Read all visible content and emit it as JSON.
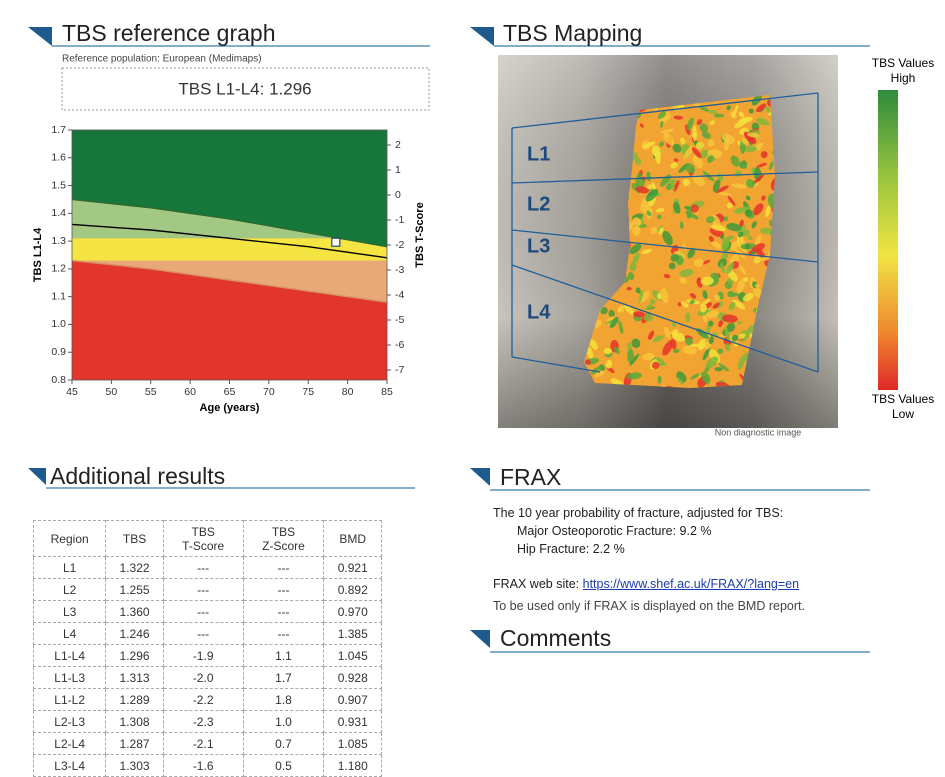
{
  "header_left": {
    "title": "TBS reference graph",
    "subtitle": "Reference population: European (Medimaps)",
    "result": "TBS  L1-L4: 1.296"
  },
  "chart_data": {
    "type": "line",
    "x_label": "Age (years)",
    "y_label": "TBS L1-L4",
    "y2_label": "TBS T-Score",
    "xlim": [
      45,
      85
    ],
    "xticks": [
      45,
      50,
      55,
      60,
      65,
      70,
      75,
      80,
      85
    ],
    "ylim": [
      0.8,
      1.7
    ],
    "yticks": [
      0.8,
      0.9,
      {
        "value": 1,
        "label": "1.0"
      },
      1.1,
      1.2,
      1.3,
      1.4,
      1.5,
      1.6,
      1.7
    ],
    "y2lim": [
      -7.4,
      2.6
    ],
    "y2ticks": [
      -7,
      -6,
      -5,
      -4,
      -3,
      -2,
      -1,
      0,
      1,
      2
    ],
    "x": [
      45,
      55,
      65,
      75,
      85
    ],
    "series": [
      {
        "color": "#2d6a2e",
        "fill": "#16773a",
        "values": [
          1.45,
          1.42,
          1.38,
          1.33,
          1.28
        ]
      },
      {
        "color": "#000000",
        "values": [
          1.36,
          1.34,
          1.31,
          1.28,
          1.24
        ]
      },
      {
        "color": "#d99060",
        "fill": "#e8a878",
        "values": [
          1.23,
          1.2,
          1.16,
          1.12,
          1.08
        ]
      }
    ],
    "thresholds": [
      1.23,
      1.31
    ],
    "background_color": "#e2352b",
    "band_color": "#f4e542",
    "above_color": "#a3c883",
    "marker": {
      "x": 78.5,
      "y": 1.296,
      "color": "#ffffff"
    }
  },
  "mapping": {
    "title": "TBS Mapping",
    "levels": [
      "L1",
      "L2",
      "L3",
      "L4"
    ],
    "scale_high": [
      "TBS Values",
      "High"
    ],
    "scale_low": [
      "TBS Values",
      "Low"
    ],
    "note": "Non diagnostic image"
  },
  "results": {
    "title": "Additional results",
    "header": [
      [
        "Region"
      ],
      [
        "TBS"
      ],
      [
        "TBS",
        "T-Score"
      ],
      [
        "TBS",
        "Z-Score"
      ],
      [
        "BMD"
      ]
    ],
    "rows": [
      [
        "L1",
        "1.322",
        "---",
        "---",
        "0.921"
      ],
      [
        "L2",
        "1.255",
        "---",
        "---",
        "0.892"
      ],
      [
        "L3",
        "1.360",
        "---",
        "---",
        "0.970"
      ],
      [
        "L4",
        "1.246",
        "---",
        "---",
        "1.385"
      ],
      [
        "L1-L4",
        "1.296",
        "-1.9",
        "1.1",
        "1.045"
      ],
      [
        "L1-L3",
        "1.313",
        "-2.0",
        "1.7",
        "0.928"
      ],
      [
        "L1-L2",
        "1.289",
        "-2.2",
        "1.8",
        "0.907"
      ],
      [
        "L2-L3",
        "1.308",
        "-2.3",
        "1.0",
        "0.931"
      ],
      [
        "L2-L4",
        "1.287",
        "-2.1",
        "0.7",
        "1.085"
      ],
      [
        "L3-L4",
        "1.303",
        "-1.6",
        "0.5",
        "1.180"
      ]
    ]
  },
  "frax": {
    "title": "FRAX",
    "intro": "The 10 year probability of fracture, adjusted for TBS:",
    "major": "Major Osteoporotic Fracture: 9.2 %",
    "hip": "Hip Fracture: 2.2 %",
    "site_label": "FRAX web site:",
    "site_url": "https://www.shef.ac.uk/FRAX/?lang=en",
    "note": "To be used only if FRAX is displayed on the BMD report."
  },
  "comments": {
    "title": "Comments"
  }
}
